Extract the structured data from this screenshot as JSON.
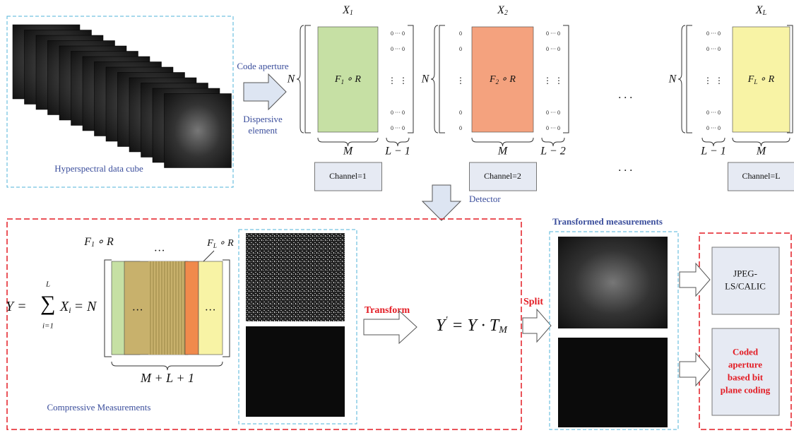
{
  "input": {
    "caption": "Hyperspectral data cube"
  },
  "arrow1": {
    "top": "Code aperture",
    "bottom": [
      "Dispersive",
      "element"
    ]
  },
  "matrix": {
    "symbol": "X",
    "fill_symbol": "F",
    "fill_rest": "∘ R",
    "rows": "N",
    "zero_row": "0 ··· 0",
    "zero": "0",
    "vdots": "⋮"
  },
  "channels": [
    {
      "sub": "1",
      "width_label": "M",
      "pad_label": "L − 1",
      "label": "Channel=1"
    },
    {
      "sub": "2",
      "width_label": "M",
      "pad_label": "L − 2",
      "label": "Channel=2"
    },
    {
      "sub": "L",
      "width_label": "M",
      "pad_label": "L − 1",
      "label": "Channel=L"
    }
  ],
  "ellipsis": "· · ·",
  "detector": "Detector",
  "compressive": {
    "lhs": "Y =",
    "sum": "∑",
    "sum_upper": "L",
    "sum_lower": "i=1",
    "term": "X",
    "term_sub": "i",
    "rhs": "= N",
    "first_sub": "1",
    "last_sub": "L",
    "dots": "…",
    "width_label": "M + L + 1",
    "caption": "Compressive Measurements"
  },
  "transform": {
    "label": "Transform",
    "lhs": "Y",
    "prime": "'",
    "rhs": "= Y · T",
    "sub": "M"
  },
  "split": "Split",
  "transformed": {
    "caption": "Transformed measurements"
  },
  "coders": [
    {
      "lines": [
        "JPEG-",
        "LS/CALIC"
      ]
    },
    {
      "lines": [
        "Coded",
        "aperture",
        "based bit",
        "plane coding"
      ]
    }
  ]
}
